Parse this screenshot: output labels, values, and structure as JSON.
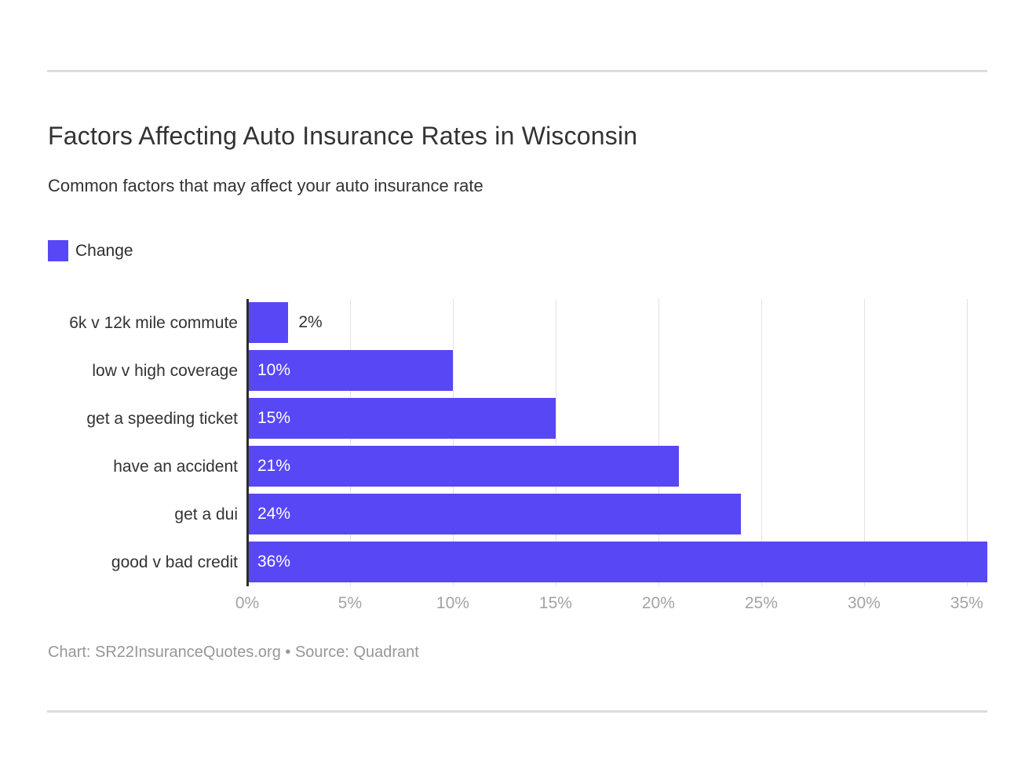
{
  "header": {
    "title": "Factors Affecting Auto Insurance Rates in Wisconsin",
    "subtitle": "Common factors that may affect your auto insurance rate"
  },
  "legend": {
    "label": "Change",
    "color": "#5847f5"
  },
  "footer": {
    "attribution": "Chart: SR22InsuranceQuotes.org • Source: Quadrant"
  },
  "colors": {
    "bar": "#5847f5",
    "axis_line": "#2d2d2d",
    "gridline": "#e2e2e2",
    "tick_text": "#a3a3a3",
    "divider": "#dcdcdc",
    "title_text": "#333333",
    "footer_text": "#979797"
  },
  "chart_data": {
    "type": "bar",
    "orientation": "horizontal",
    "title": "Factors Affecting Auto Insurance Rates in Wisconsin",
    "subtitle": "Common factors that may affect your auto insurance rate",
    "series_name": "Change",
    "categories": [
      "6k v 12k mile commute",
      "low v high coverage",
      "get a speeding ticket",
      "have an accident",
      "get a dui",
      "good v bad credit"
    ],
    "values": [
      2,
      10,
      15,
      21,
      24,
      36
    ],
    "value_labels": [
      "2%",
      "10%",
      "15%",
      "21%",
      "24%",
      "36%"
    ],
    "xlabel": "",
    "ylabel": "",
    "xlim": [
      0,
      36
    ],
    "ticks": [
      0,
      5,
      10,
      15,
      20,
      25,
      30,
      35
    ],
    "tick_labels": [
      "0%",
      "5%",
      "10%",
      "15%",
      "20%",
      "25%",
      "30%",
      "35%"
    ],
    "grid": true,
    "legend_position": "top-left",
    "bar_color": "#5847f5",
    "inside_label_min_value": 5
  }
}
